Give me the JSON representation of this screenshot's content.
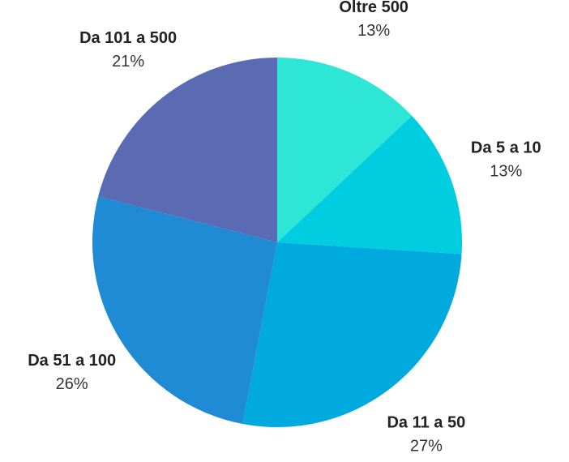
{
  "chart_data": {
    "type": "pie",
    "categories": [
      "Oltre 500",
      "Da 5 a 10",
      "Da 11 a 50",
      "Da 51 a 100",
      "Da 101 a 500"
    ],
    "values": [
      13,
      13,
      27,
      26,
      21
    ],
    "value_labels": [
      "13%",
      "13%",
      "27%",
      "26%",
      "21%"
    ],
    "colors": [
      "#2ee6d6",
      "#00cde0",
      "#00aadf",
      "#1e8bd4",
      "#5a6bb3"
    ]
  }
}
